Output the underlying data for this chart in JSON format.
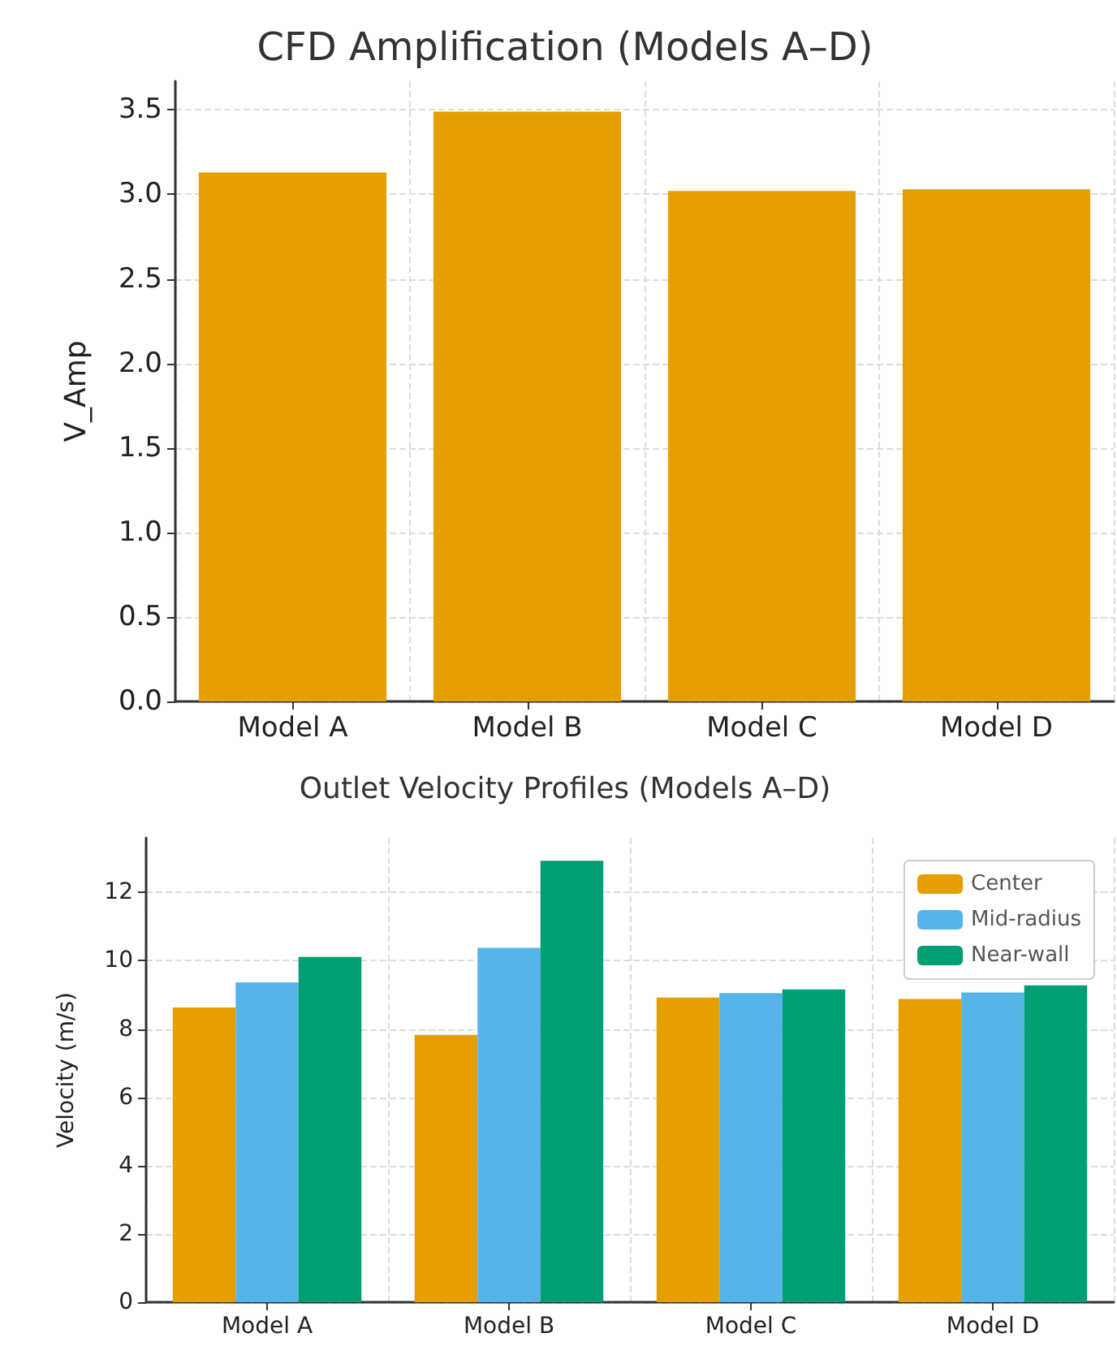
{
  "chart_data": [
    {
      "type": "bar",
      "title": "CFD Amplification (Models A–D)",
      "ylabel": "V_Amp",
      "categories": [
        "Model A",
        "Model B",
        "Model C",
        "Model D"
      ],
      "values": [
        3.13,
        3.49,
        3.02,
        3.03
      ],
      "color": "#e69f00",
      "ylim": [
        0,
        3.67
      ],
      "yticks": [
        {
          "value": 0,
          "label": "0.0"
        },
        0.5,
        {
          "value": 1,
          "label": "1.0"
        },
        1.5,
        {
          "value": 2,
          "label": "2.0"
        },
        2.5,
        {
          "value": 3,
          "label": "3.0"
        },
        3.5
      ],
      "grid": true
    },
    {
      "type": "bar",
      "title": "Outlet Velocity Profiles (Models A–D)",
      "ylabel": "Velocity (m/s)",
      "categories": [
        "Model A",
        "Model B",
        "Model C",
        "Model D"
      ],
      "series": [
        {
          "name": "Center",
          "color": "#e69f00",
          "values": [
            8.63,
            7.83,
            8.92,
            8.88
          ]
        },
        {
          "name": "Mid-radius",
          "color": "#56b4e9",
          "values": [
            9.37,
            10.38,
            9.05,
            9.07
          ]
        },
        {
          "name": "Near-wall",
          "color": "#009e73",
          "values": [
            10.11,
            12.93,
            9.16,
            9.28
          ]
        }
      ],
      "ylim": [
        0,
        13.6
      ],
      "yticks": [
        0,
        2,
        4,
        6,
        8,
        10,
        12
      ],
      "grid": true,
      "legend": "top right"
    }
  ]
}
